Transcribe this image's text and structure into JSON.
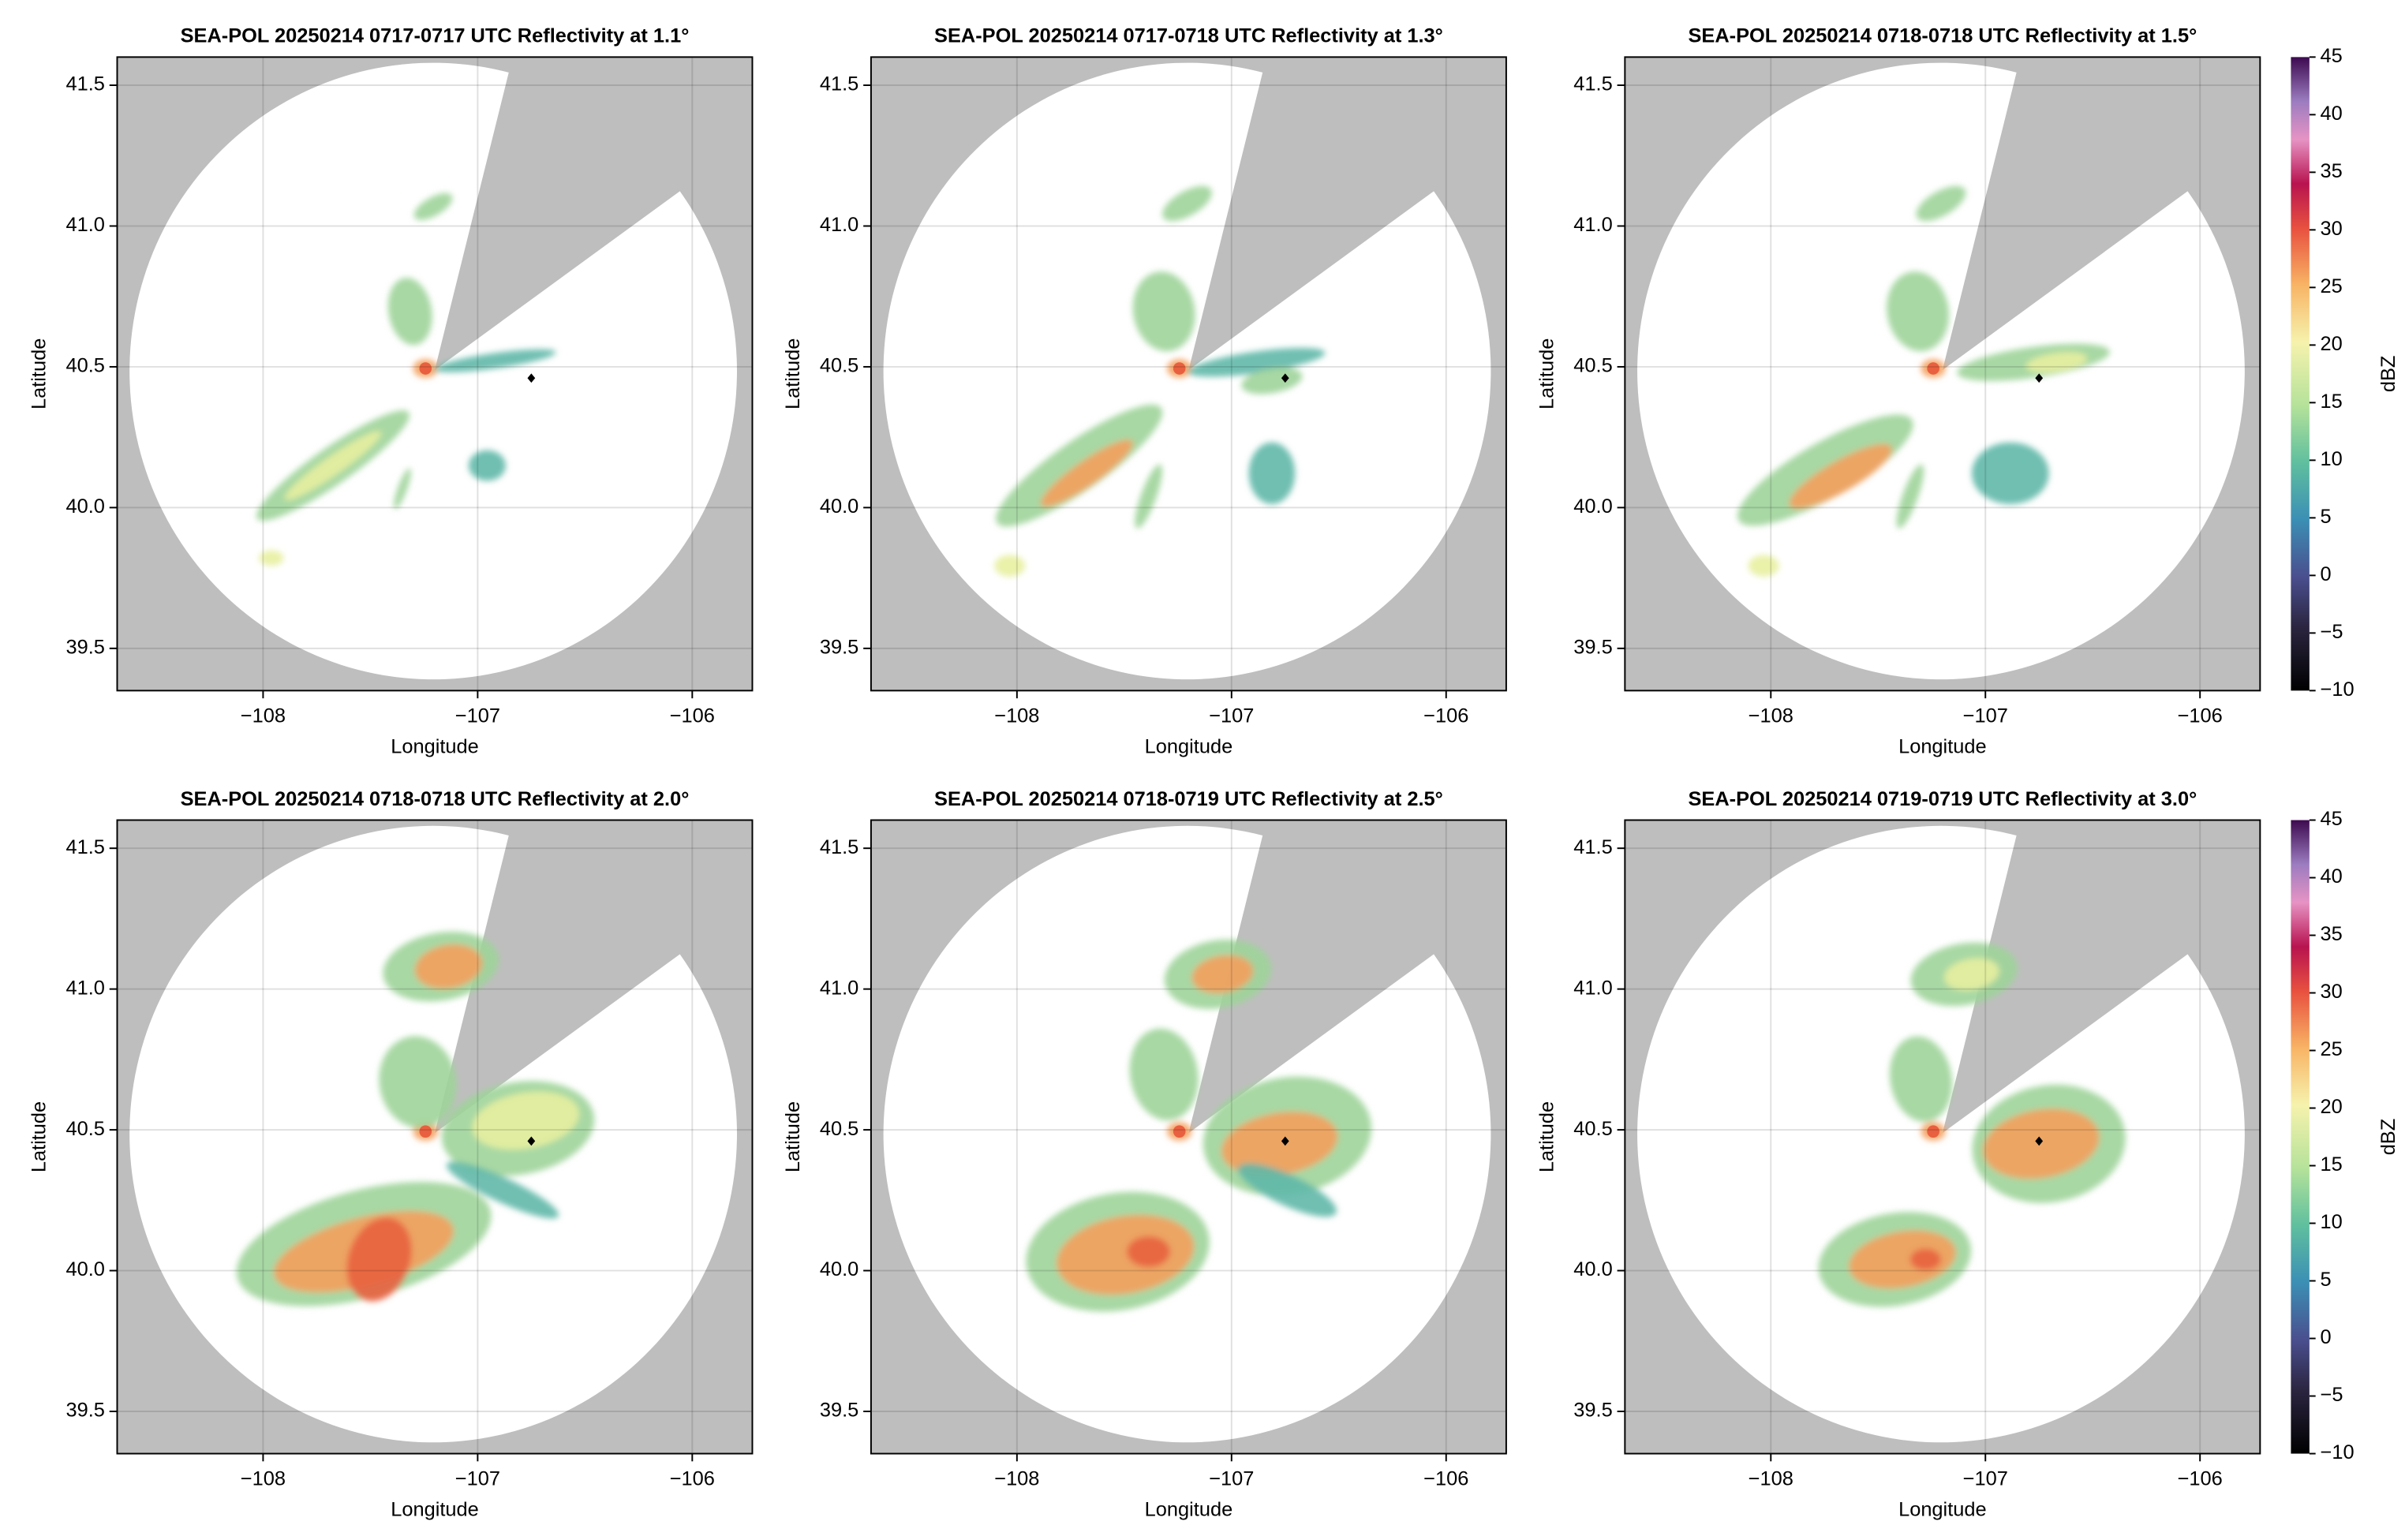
{
  "chart_data": [
    {
      "type": "radar",
      "title": "SEA-POL 20250214 0717-0717 UTC Reflectivity at 1.1°",
      "xlabel": "Longitude",
      "ylabel": "Latitude",
      "xlim": [
        -108.68,
        -105.72
      ],
      "ylim": [
        39.35,
        41.6
      ],
      "xticks": [
        {
          "value": -108,
          "label": "−108"
        },
        {
          "value": -107,
          "label": "−107"
        },
        {
          "value": -106,
          "label": "−106"
        }
      ],
      "yticks": [
        {
          "value": 39.5,
          "label": "39.5"
        },
        {
          "value": 40.0,
          "label": "40.0"
        },
        {
          "value": 40.5,
          "label": "40.5"
        },
        {
          "value": 41.0,
          "label": "41.0"
        },
        {
          "value": 41.5,
          "label": "41.5"
        }
      ],
      "grid": true,
      "marker": {
        "x": -106.75,
        "y": 40.46
      }
    },
    {
      "type": "radar",
      "title": "SEA-POL 20250214 0717-0718 UTC Reflectivity at 1.3°",
      "xlabel": "Longitude",
      "ylabel": "Latitude",
      "xlim": [
        -108.68,
        -105.72
      ],
      "ylim": [
        39.35,
        41.6
      ],
      "xticks": [
        {
          "value": -108,
          "label": "−108"
        },
        {
          "value": -107,
          "label": "−107"
        },
        {
          "value": -106,
          "label": "−106"
        }
      ],
      "yticks": [
        {
          "value": 39.5,
          "label": "39.5"
        },
        {
          "value": 40.0,
          "label": "40.0"
        },
        {
          "value": 40.5,
          "label": "40.5"
        },
        {
          "value": 41.0,
          "label": "41.0"
        },
        {
          "value": 41.5,
          "label": "41.5"
        }
      ],
      "grid": true,
      "marker": {
        "x": -106.75,
        "y": 40.46
      }
    },
    {
      "type": "radar",
      "title": "SEA-POL 20250214 0718-0718 UTC Reflectivity at 1.5°",
      "xlabel": "Longitude",
      "ylabel": "Latitude",
      "xlim": [
        -108.68,
        -105.72
      ],
      "ylim": [
        39.35,
        41.6
      ],
      "xticks": [
        {
          "value": -108,
          "label": "−108"
        },
        {
          "value": -107,
          "label": "−107"
        },
        {
          "value": -106,
          "label": "−106"
        }
      ],
      "yticks": [
        {
          "value": 39.5,
          "label": "39.5"
        },
        {
          "value": 40.0,
          "label": "40.0"
        },
        {
          "value": 40.5,
          "label": "40.5"
        },
        {
          "value": 41.0,
          "label": "41.0"
        },
        {
          "value": 41.5,
          "label": "41.5"
        }
      ],
      "grid": true,
      "marker": {
        "x": -106.75,
        "y": 40.46
      },
      "colorbar": {
        "label": "dBZ",
        "lim": [
          -10,
          45
        ],
        "ticks": [
          {
            "value": -10,
            "label": "−10"
          },
          {
            "value": -5,
            "label": "−5"
          },
          0,
          5,
          10,
          15,
          20,
          25,
          30,
          35,
          40,
          45
        ]
      }
    },
    {
      "type": "radar",
      "title": "SEA-POL 20250214 0718-0718 UTC Reflectivity at 2.0°",
      "xlabel": "Longitude",
      "ylabel": "Latitude",
      "xlim": [
        -108.68,
        -105.72
      ],
      "ylim": [
        39.35,
        41.6
      ],
      "xticks": [
        {
          "value": -108,
          "label": "−108"
        },
        {
          "value": -107,
          "label": "−107"
        },
        {
          "value": -106,
          "label": "−106"
        }
      ],
      "yticks": [
        {
          "value": 39.5,
          "label": "39.5"
        },
        {
          "value": 40.0,
          "label": "40.0"
        },
        {
          "value": 40.5,
          "label": "40.5"
        },
        {
          "value": 41.0,
          "label": "41.0"
        },
        {
          "value": 41.5,
          "label": "41.5"
        }
      ],
      "grid": true,
      "marker": {
        "x": -106.75,
        "y": 40.46
      }
    },
    {
      "type": "radar",
      "title": "SEA-POL 20250214 0718-0719 UTC Reflectivity at 2.5°",
      "xlabel": "Longitude",
      "ylabel": "Latitude",
      "xlim": [
        -108.68,
        -105.72
      ],
      "ylim": [
        39.35,
        41.6
      ],
      "xticks": [
        {
          "value": -108,
          "label": "−108"
        },
        {
          "value": -107,
          "label": "−107"
        },
        {
          "value": -106,
          "label": "−106"
        }
      ],
      "yticks": [
        {
          "value": 39.5,
          "label": "39.5"
        },
        {
          "value": 40.0,
          "label": "40.0"
        },
        {
          "value": 40.5,
          "label": "40.5"
        },
        {
          "value": 41.0,
          "label": "41.0"
        },
        {
          "value": 41.5,
          "label": "41.5"
        }
      ],
      "grid": true,
      "marker": {
        "x": -106.75,
        "y": 40.46
      }
    },
    {
      "type": "radar",
      "title": "SEA-POL 20250214 0719-0719 UTC Reflectivity at 3.0°",
      "xlabel": "Longitude",
      "ylabel": "Latitude",
      "xlim": [
        -108.68,
        -105.72
      ],
      "ylim": [
        39.35,
        41.6
      ],
      "xticks": [
        {
          "value": -108,
          "label": "−108"
        },
        {
          "value": -107,
          "label": "−107"
        },
        {
          "value": -106,
          "label": "−106"
        }
      ],
      "yticks": [
        {
          "value": 39.5,
          "label": "39.5"
        },
        {
          "value": 40.0,
          "label": "40.0"
        },
        {
          "value": 40.5,
          "label": "40.5"
        },
        {
          "value": 41.0,
          "label": "41.0"
        },
        {
          "value": 41.5,
          "label": "41.5"
        }
      ],
      "grid": true,
      "marker": {
        "x": -106.75,
        "y": 40.46
      },
      "colorbar": {
        "label": "dBZ",
        "lim": [
          -10,
          45
        ],
        "ticks": [
          {
            "value": -10,
            "label": "−10"
          },
          {
            "value": -5,
            "label": "−5"
          },
          0,
          5,
          10,
          15,
          20,
          25,
          30,
          35,
          40,
          45
        ]
      }
    }
  ]
}
